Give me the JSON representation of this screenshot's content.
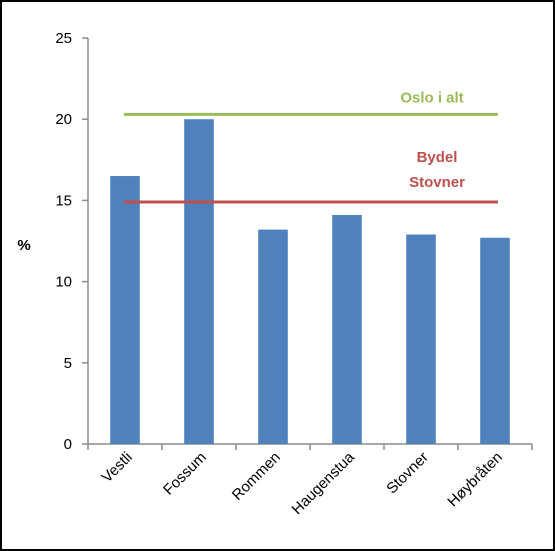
{
  "chart_data": {
    "type": "bar",
    "categories": [
      "Vestli",
      "Fossum",
      "Rommen",
      "Haugenstua",
      "Stovner",
      "Høybråten"
    ],
    "values": [
      16.5,
      20.0,
      13.2,
      14.1,
      12.9,
      12.7
    ],
    "ylabel": "%",
    "ylim": [
      0,
      25
    ],
    "yticks": [
      0,
      5,
      10,
      15,
      20,
      25
    ],
    "grid": false,
    "bar_color": "#4F81BD",
    "reference_lines": [
      {
        "name": "Oslo i alt",
        "value": 20.3,
        "color": "#9BBB59"
      },
      {
        "name": "Bydel Stovner",
        "label_lines": [
          "Bydel",
          "Stovner"
        ],
        "value": 14.9,
        "color": "#C0504D"
      }
    ]
  }
}
